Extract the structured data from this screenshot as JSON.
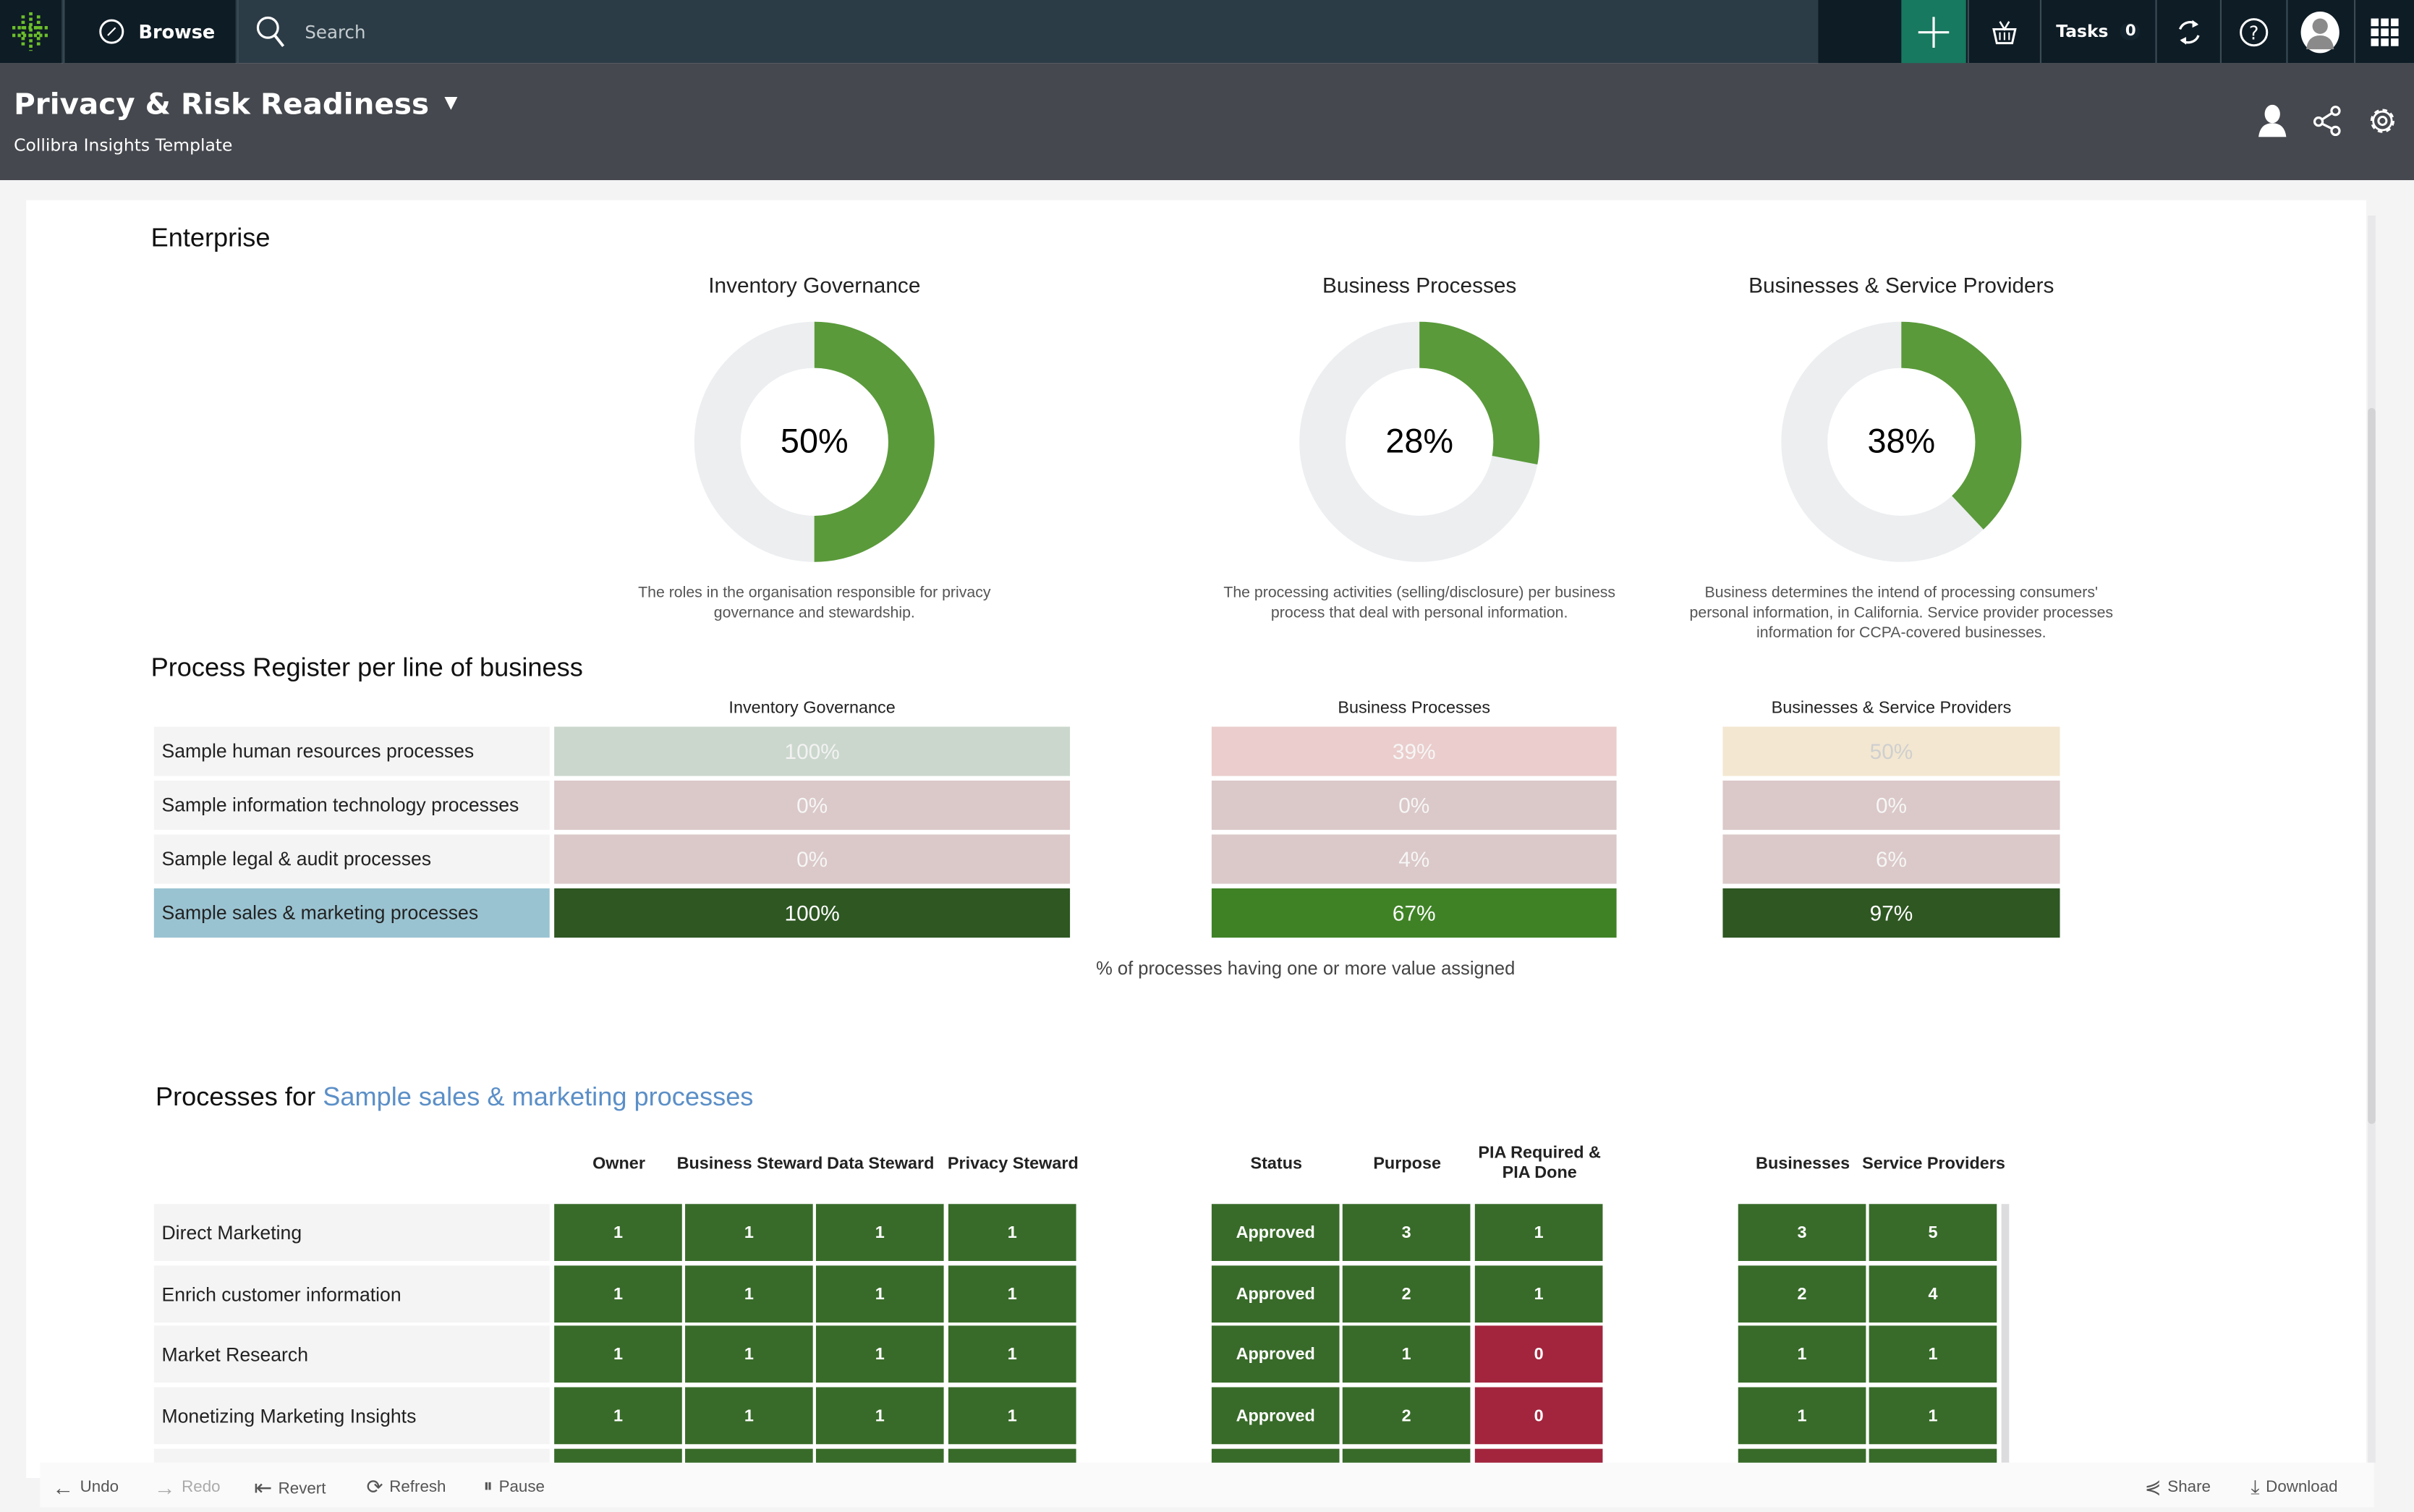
{
  "topbar": {
    "browse_label": "Browse",
    "search_placeholder": "Search",
    "tasks_label": "Tasks",
    "tasks_count": "0",
    "accent_color": "#17795f"
  },
  "header": {
    "title": "Privacy & Risk Readiness",
    "subtitle": "Collibra Insights Template"
  },
  "enterprise": {
    "heading": "Enterprise",
    "donuts": [
      {
        "title": "Inventory Governance",
        "value": 50,
        "label": "50%",
        "desc": "The roles in the organisation responsible for privacy governance and stewardship."
      },
      {
        "title": "Business Processes",
        "value": 28,
        "label": "28%",
        "desc": "The processing activities (selling/disclosure) per business process that deal with personal information."
      },
      {
        "title": "Businesses & Service Providers",
        "value": 38,
        "label": "38%",
        "desc": "Business determines the intend of processing consumers' personal information, in California. Service provider processes information for CCPA-covered businesses."
      }
    ],
    "colors": {
      "fill": "#5a9a3a",
      "track": "#eceef0"
    }
  },
  "register": {
    "heading": "Process Register per line of business",
    "columns": [
      "Inventory Governance",
      "Business Processes",
      "Businesses & Service Providers"
    ],
    "rows": [
      {
        "label": "Sample human resources processes",
        "cells": [
          {
            "v": "100%",
            "bg": "#cbd7cd",
            "fg": "#f2f2f2"
          },
          {
            "v": "39%",
            "bg": "#eacdcc",
            "fg": "#f6f6f6"
          },
          {
            "v": "50%",
            "bg": "#f3e7d1",
            "fg": "#cfcfcf"
          }
        ]
      },
      {
        "label": "Sample information technology processes",
        "cells": [
          {
            "v": "0%",
            "bg": "#dbc8c8",
            "fg": "#f6f6f6"
          },
          {
            "v": "0%",
            "bg": "#dbc8c8",
            "fg": "#f6f6f6"
          },
          {
            "v": "0%",
            "bg": "#dbc8c8",
            "fg": "#f6f6f6"
          }
        ]
      },
      {
        "label": "Sample legal & audit processes",
        "cells": [
          {
            "v": "0%",
            "bg": "#dbc8c8",
            "fg": "#f6f6f6"
          },
          {
            "v": "4%",
            "bg": "#dbc8c8",
            "fg": "#f6f6f6"
          },
          {
            "v": "6%",
            "bg": "#dbc8c8",
            "fg": "#f6f6f6"
          }
        ]
      },
      {
        "label": "Sample sales & marketing processes",
        "selected": true,
        "cells": [
          {
            "v": "100%",
            "bg": "#2e5722",
            "fg": "#ffffff"
          },
          {
            "v": "67%",
            "bg": "#3f8226",
            "fg": "#ffffff"
          },
          {
            "v": "97%",
            "bg": "#2e5722",
            "fg": "#ffffff"
          }
        ]
      }
    ],
    "footnote": "% of processes having one or more value assigned"
  },
  "processes": {
    "heading_prefix": "Processes for ",
    "heading_link": "Sample sales & marketing processes",
    "columns": [
      "Owner",
      "Business Steward",
      "Data Steward",
      "Privacy Steward",
      "Status",
      "Purpose",
      "PIA Required & PIA Done",
      "Businesses",
      "Service Providers"
    ],
    "rows": [
      {
        "label": "Direct Marketing",
        "values": [
          "1",
          "1",
          "1",
          "1",
          "Approved",
          "3",
          "1",
          "3",
          "5"
        ]
      },
      {
        "label": "Enrich customer information",
        "values": [
          "1",
          "1",
          "1",
          "1",
          "Approved",
          "2",
          "1",
          "2",
          "4"
        ]
      },
      {
        "label": "Market Research",
        "values": [
          "1",
          "1",
          "1",
          "1",
          "Approved",
          "1",
          "0",
          "1",
          "1"
        ]
      },
      {
        "label": "Monetizing Marketing Insights",
        "values": [
          "1",
          "1",
          "1",
          "1",
          "Approved",
          "2",
          "0",
          "1",
          "1"
        ]
      }
    ],
    "colors": {
      "ok": "#386b29",
      "bad": "#a2253d"
    }
  },
  "toolbar": {
    "undo": "Undo",
    "redo": "Redo",
    "revert": "Revert",
    "refresh": "Refresh",
    "pause": "Pause",
    "share": "Share",
    "download": "Download"
  }
}
